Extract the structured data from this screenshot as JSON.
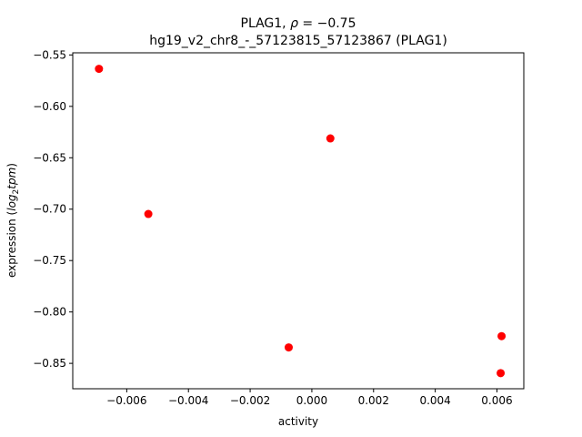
{
  "chart_data": {
    "type": "scatter",
    "title_line1_prefix": "PLAG1, ",
    "title_line1_rho": "ρ",
    "title_line1_suffix": " = −0.75",
    "title_line2": "hg19_v2_chr8_-_57123815_57123867 (PLAG1)",
    "xlabel": "activity",
    "ylabel_prefix": "expression (",
    "ylabel_log": "log",
    "ylabel_sub": "2",
    "ylabel_tpm": "tpm",
    "ylabel_suffix": ")",
    "xlim": [
      -0.00775,
      0.00687
    ],
    "ylim": [
      -0.8747,
      -0.5479
    ],
    "x_ticks": [
      {
        "value": -0.006,
        "label": "−0.006"
      },
      {
        "value": -0.004,
        "label": "−0.004"
      },
      {
        "value": -0.002,
        "label": "−0.002"
      },
      {
        "value": 0.0,
        "label": "0.000"
      },
      {
        "value": 0.002,
        "label": "0.002"
      },
      {
        "value": 0.004,
        "label": "0.004"
      },
      {
        "value": 0.006,
        "label": "0.006"
      }
    ],
    "y_ticks": [
      {
        "value": -0.55,
        "label": "−0.55"
      },
      {
        "value": -0.6,
        "label": "−0.60"
      },
      {
        "value": -0.65,
        "label": "−0.65"
      },
      {
        "value": -0.7,
        "label": "−0.70"
      },
      {
        "value": -0.75,
        "label": "−0.75"
      },
      {
        "value": -0.8,
        "label": "−0.80"
      },
      {
        "value": -0.85,
        "label": "−0.85"
      }
    ],
    "points": [
      {
        "x": -0.0069,
        "y": -0.5635
      },
      {
        "x": -0.0053,
        "y": -0.7047
      },
      {
        "x": 0.0006,
        "y": -0.6312
      },
      {
        "x": -0.00075,
        "y": -0.8345
      },
      {
        "x": 0.00615,
        "y": -0.8235
      },
      {
        "x": 0.00612,
        "y": -0.8595
      }
    ],
    "marker_color": "#ff0000",
    "grid": false
  }
}
